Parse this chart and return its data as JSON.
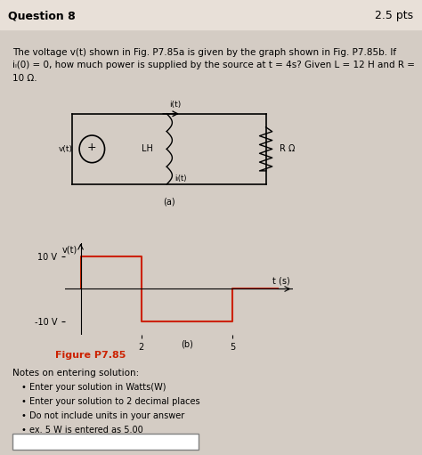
{
  "bg_color": "#d4ccc4",
  "header_color": "#e8e0d8",
  "title_text": "Question 8",
  "pts_text": "2.5 pts",
  "question_text": "The voltage v(t) shown in Fig. P7.85a is given by the graph shown in Fig. P7.85b. If\niₗ(0) = 0, how much power is supplied by the source at t = 4s? Given L = 12 H and R =\n10 Ω.",
  "figure_label": "Figure P7.85",
  "figure_label_color": "#cc2200",
  "sub_label_a": "(a)",
  "sub_label_b": "(b)",
  "circuit_labels": {
    "i_t": "i(t)",
    "v_t": "v(t)",
    "LH": "LH",
    "iL_t": "iₗ(t)",
    "R_ohm": "R Ω"
  },
  "graph": {
    "v_axis_label": "v(t)",
    "t_axis_label": "t (s)",
    "waveform_color": "#cc2200",
    "waveform_points_x": [
      0,
      0,
      2,
      2,
      5,
      5,
      6.5
    ],
    "waveform_points_y": [
      0,
      10,
      10,
      -10,
      -10,
      0,
      0
    ]
  },
  "notes_title": "Notes on entering solution:",
  "notes_bullets": [
    "Enter your solution in Watts(W)",
    "Enter your solution to 2 decimal places",
    "Do not include units in your answer",
    "ex. 5 W is entered as 5.00"
  ]
}
